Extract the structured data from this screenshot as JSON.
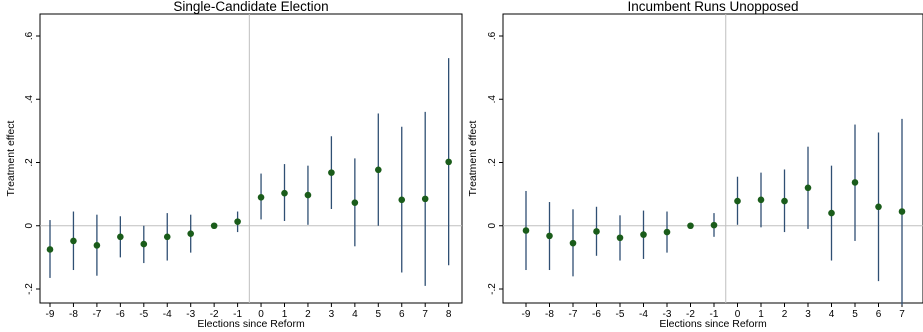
{
  "chart_data": [
    {
      "type": "scatter",
      "title": "Single-Candidate Election",
      "xlabel": "Elections since Reform",
      "ylabel": "Treatment effect",
      "xlim": [
        -9,
        8
      ],
      "ylim": [
        -0.2,
        0.6
      ],
      "x_ticks": [
        -9,
        -8,
        -7,
        -6,
        -5,
        -4,
        -3,
        -2,
        -1,
        0,
        1,
        2,
        3,
        4,
        5,
        6,
        7,
        8
      ],
      "y_ticks": [
        -0.2,
        0,
        0.2,
        0.4,
        0.6
      ],
      "y_tick_labels": [
        "-.2",
        "0",
        ".2",
        ".4",
        ".6"
      ],
      "reference_x": -0.5,
      "reference_y": 0,
      "grid": false,
      "colors": {
        "point": "#1a5c1a",
        "interval": "#2f4f73",
        "reference": "#bfbfbf"
      },
      "points": [
        {
          "x": -9,
          "y": -0.075,
          "lo": -0.165,
          "hi": 0.018
        },
        {
          "x": -8,
          "y": -0.048,
          "lo": -0.14,
          "hi": 0.045
        },
        {
          "x": -7,
          "y": -0.062,
          "lo": -0.158,
          "hi": 0.035
        },
        {
          "x": -6,
          "y": -0.035,
          "lo": -0.1,
          "hi": 0.03
        },
        {
          "x": -5,
          "y": -0.058,
          "lo": -0.118,
          "hi": 0.0
        },
        {
          "x": -4,
          "y": -0.035,
          "lo": -0.11,
          "hi": 0.04
        },
        {
          "x": -3,
          "y": -0.025,
          "lo": -0.085,
          "hi": 0.035
        },
        {
          "x": -2,
          "y": 0.0,
          "lo": 0.0,
          "hi": 0.0
        },
        {
          "x": -1,
          "y": 0.013,
          "lo": -0.02,
          "hi": 0.045
        },
        {
          "x": 0,
          "y": 0.09,
          "lo": 0.02,
          "hi": 0.165
        },
        {
          "x": 1,
          "y": 0.103,
          "lo": 0.015,
          "hi": 0.195
        },
        {
          "x": 2,
          "y": 0.097,
          "lo": 0.003,
          "hi": 0.19
        },
        {
          "x": 3,
          "y": 0.168,
          "lo": 0.053,
          "hi": 0.283
        },
        {
          "x": 4,
          "y": 0.073,
          "lo": -0.065,
          "hi": 0.213
        },
        {
          "x": 5,
          "y": 0.177,
          "lo": 0.0,
          "hi": 0.355
        },
        {
          "x": 6,
          "y": 0.082,
          "lo": -0.148,
          "hi": 0.313
        },
        {
          "x": 7,
          "y": 0.085,
          "lo": -0.19,
          "hi": 0.36
        },
        {
          "x": 8,
          "y": 0.202,
          "lo": -0.125,
          "hi": 0.53
        }
      ]
    },
    {
      "type": "scatter",
      "title": "Incumbent Runs Unopposed",
      "xlabel": "Elections since Reform",
      "ylabel": "Treatment effect",
      "xlim": [
        -9,
        7
      ],
      "ylim": [
        -0.2,
        0.6
      ],
      "x_ticks": [
        -9,
        -8,
        -7,
        -6,
        -5,
        -4,
        -3,
        -2,
        -1,
        0,
        1,
        2,
        3,
        4,
        5,
        6,
        7
      ],
      "y_ticks": [
        -0.2,
        0,
        0.2,
        0.4,
        0.6
      ],
      "y_tick_labels": [
        "-.2",
        "0",
        ".2",
        ".4",
        ".6"
      ],
      "reference_x": -0.5,
      "reference_y": 0,
      "grid": false,
      "colors": {
        "point": "#1a5c1a",
        "interval": "#2f4f73",
        "reference": "#bfbfbf"
      },
      "points": [
        {
          "x": -9,
          "y": -0.015,
          "lo": -0.14,
          "hi": 0.11
        },
        {
          "x": -8,
          "y": -0.032,
          "lo": -0.14,
          "hi": 0.075
        },
        {
          "x": -7,
          "y": -0.055,
          "lo": -0.16,
          "hi": 0.052
        },
        {
          "x": -6,
          "y": -0.018,
          "lo": -0.095,
          "hi": 0.06
        },
        {
          "x": -5,
          "y": -0.038,
          "lo": -0.11,
          "hi": 0.033
        },
        {
          "x": -4,
          "y": -0.028,
          "lo": -0.105,
          "hi": 0.048
        },
        {
          "x": -3,
          "y": -0.02,
          "lo": -0.085,
          "hi": 0.045
        },
        {
          "x": -2,
          "y": 0.0,
          "lo": 0.0,
          "hi": 0.0
        },
        {
          "x": -1,
          "y": 0.002,
          "lo": -0.035,
          "hi": 0.04
        },
        {
          "x": 0,
          "y": 0.078,
          "lo": 0.003,
          "hi": 0.155
        },
        {
          "x": 1,
          "y": 0.082,
          "lo": -0.005,
          "hi": 0.168
        },
        {
          "x": 2,
          "y": 0.078,
          "lo": -0.02,
          "hi": 0.178
        },
        {
          "x": 3,
          "y": 0.12,
          "lo": -0.01,
          "hi": 0.25
        },
        {
          "x": 4,
          "y": 0.04,
          "lo": -0.11,
          "hi": 0.19
        },
        {
          "x": 5,
          "y": 0.137,
          "lo": -0.048,
          "hi": 0.32
        },
        {
          "x": 6,
          "y": 0.06,
          "lo": -0.175,
          "hi": 0.295
        },
        {
          "x": 7,
          "y": 0.045,
          "lo": -0.25,
          "hi": 0.338
        }
      ]
    }
  ]
}
